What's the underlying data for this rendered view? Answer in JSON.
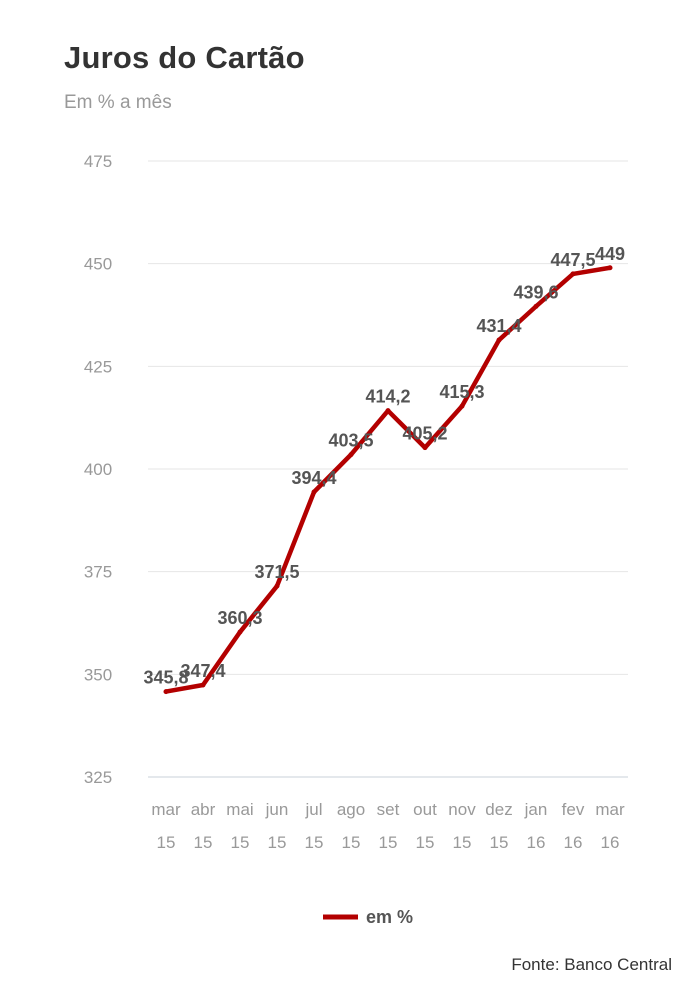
{
  "title": "Juros do Cartão",
  "subtitle": "Em % a mês",
  "source": "Fonte: Banco Central",
  "chart_data": {
    "type": "line",
    "categories": [
      [
        "mar",
        "15"
      ],
      [
        "abr",
        "15"
      ],
      [
        "mai",
        "15"
      ],
      [
        "jun",
        "15"
      ],
      [
        "jul",
        "15"
      ],
      [
        "ago",
        "15"
      ],
      [
        "set",
        "15"
      ],
      [
        "out",
        "15"
      ],
      [
        "nov",
        "15"
      ],
      [
        "dez",
        "15"
      ],
      [
        "jan",
        "16"
      ],
      [
        "fev",
        "16"
      ],
      [
        "mar",
        "16"
      ]
    ],
    "series": [
      {
        "name": "em %",
        "color": "#b30000",
        "values": [
          345.8,
          347.4,
          360.3,
          371.5,
          394.4,
          403.5,
          414.2,
          405.2,
          415.3,
          431.4,
          439.6,
          447.5,
          449
        ],
        "labels": [
          "345,8",
          "347,4",
          "360,3",
          "371,5",
          "394,4",
          "403,5",
          "414,2",
          "405,2",
          "415,3",
          "431,4",
          "439,6",
          "447,5",
          "449"
        ]
      }
    ],
    "yticks": [
      "475",
      "450",
      "425",
      "400",
      "375",
      "350",
      "325"
    ],
    "ylim": [
      325,
      475
    ],
    "grid": true,
    "legend": "bottom-center"
  }
}
